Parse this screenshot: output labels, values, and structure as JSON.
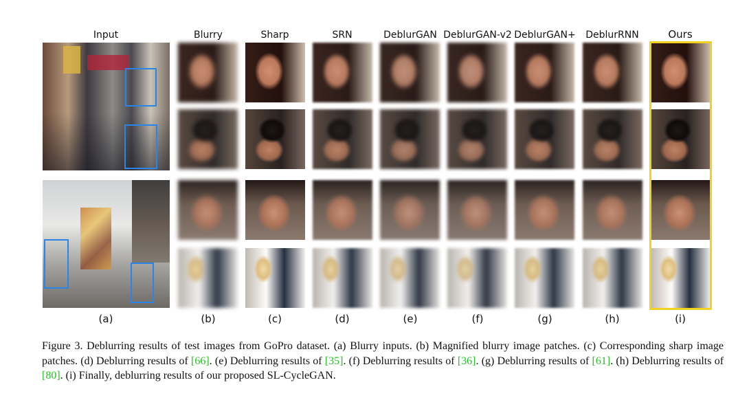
{
  "figure": {
    "column_headers": [
      "Input",
      "Blurry",
      "Sharp",
      "SRN",
      "DeblurGAN",
      "DeblurGAN-v2",
      "DeblurGAN+",
      "DeblurRNN",
      "Ours"
    ],
    "sub_labels": [
      "(a)",
      "(b)",
      "(c)",
      "(d)",
      "(e)",
      "(f)",
      "(g)",
      "(h)",
      "(i)"
    ],
    "colors": {
      "bbox": "#2b85e6",
      "ours_highlight": "#f2d21e",
      "citation": "#22c322"
    }
  },
  "caption": {
    "p1": "Figure 3. Deblurring results of test images from GoPro dataset. (a) Blurry inputs. (b) Magnified blurry image patches. (c) Corresponding sharp image patches. (d) Deblurring results of ",
    "c1": "[66]",
    "p2": ". (e) Deblurring results of ",
    "c2": "[35]",
    "p3": ". (f) Deblurring results of ",
    "c3": "[36]",
    "p4": ". (g) Deblurring results of ",
    "c4": "[61]",
    "p5": ". (h) Deblurring results of ",
    "c5": "[80]",
    "p6": ". (i) Finally, deblurring results of our proposed SL-CycleGAN."
  }
}
